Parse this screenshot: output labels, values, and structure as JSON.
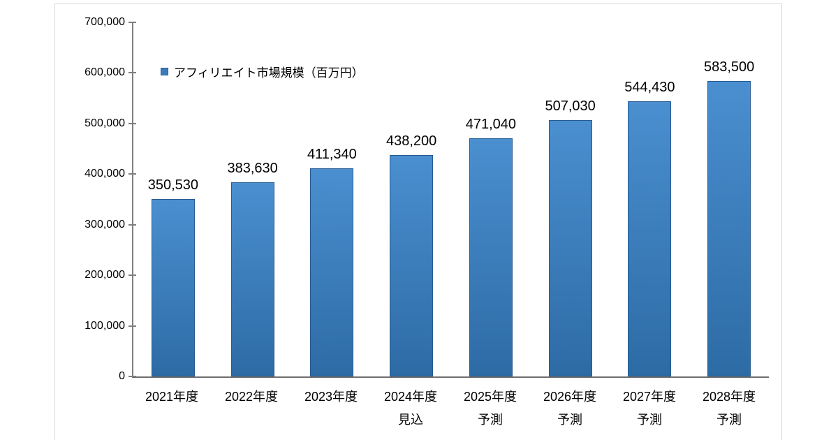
{
  "chart_data": {
    "type": "bar",
    "title": "",
    "legend": {
      "label": "アフィリエイト市場規模（百万円）",
      "position": "top-left-inside"
    },
    "categories": [
      {
        "line1": "2021年度",
        "line2": ""
      },
      {
        "line1": "2022年度",
        "line2": ""
      },
      {
        "line1": "2023年度",
        "line2": ""
      },
      {
        "line1": "2024年度",
        "line2": "見込"
      },
      {
        "line1": "2025年度",
        "line2": "予測"
      },
      {
        "line1": "2026年度",
        "line2": "予測"
      },
      {
        "line1": "2027年度",
        "line2": "予測"
      },
      {
        "line1": "2028年度",
        "line2": "予測"
      }
    ],
    "values": [
      350530,
      383630,
      411340,
      438200,
      471040,
      507030,
      544430,
      583500
    ],
    "value_labels": [
      "350,530",
      "383,630",
      "411,340",
      "438,200",
      "471,040",
      "507,030",
      "544,430",
      "583,500"
    ],
    "xlabel": "",
    "ylabel": "",
    "ylim": [
      0,
      700000
    ],
    "ytick_interval": 100000,
    "ytick_labels": [
      "0",
      "100,000",
      "200,000",
      "300,000",
      "400,000",
      "500,000",
      "600,000",
      "700,000"
    ],
    "grid": false,
    "colors": {
      "bar_fill_top": "#4a8fd0",
      "bar_fill_bottom": "#2d6ba5",
      "bar_border": "#265a90",
      "legend_marker_fill": "#3a7cbe",
      "legend_marker_border": "#275d92",
      "axis_line": "#7f7f7f",
      "frame_border": "#d9d9d9",
      "label_text": "#000000"
    }
  }
}
